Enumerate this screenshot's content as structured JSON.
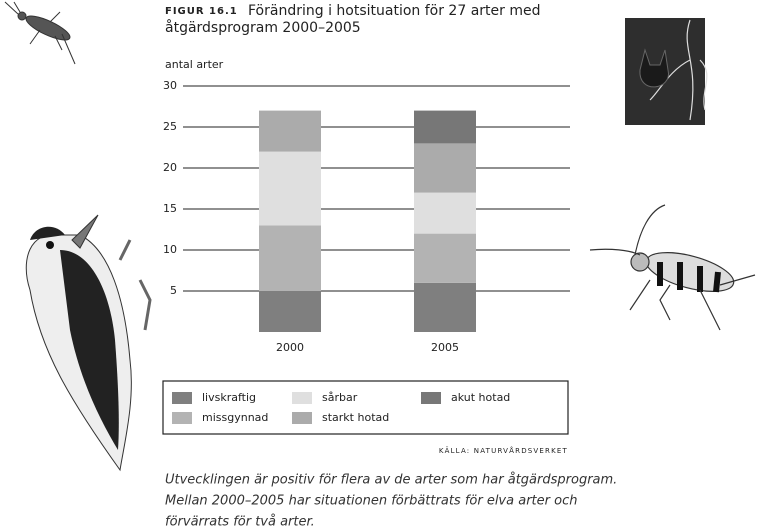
{
  "chart_data": {
    "type": "stacked_bar",
    "figure_label": "FIGUR 16.1",
    "title": [
      "Förändring i hotsituation för 27 arter med",
      "åtgärdsprogram 2000–2005"
    ],
    "y_label": "antal arter",
    "categories": [
      "2000",
      "2005"
    ],
    "series": [
      {
        "name": "livskraftig",
        "color": "#7f7f7f",
        "values": [
          5,
          6
        ]
      },
      {
        "name": "missgynnad",
        "color": "#b3b3b3",
        "values": [
          8,
          6
        ]
      },
      {
        "name": "sårbar",
        "color": "#dfdfdf",
        "values": [
          9,
          5
        ]
      },
      {
        "name": "starkt hotad",
        "color": "#ababab",
        "values": [
          5,
          6
        ]
      },
      {
        "name": "akut hotad",
        "color": "#777777",
        "values": [
          0,
          4
        ]
      }
    ],
    "ylim": [
      0,
      30
    ],
    "yticks": [
      5,
      10,
      15,
      20,
      25,
      30
    ],
    "grid": true,
    "source": "KÄLLA: NATURVÅRDSVERKET",
    "caption": [
      "Utvecklingen är positiv för flera av de arter som har åtgärdsprogram.",
      "Mellan 2000–2005 har situationen förbättrats för elva arter och",
      "förvärrats för två arter."
    ]
  }
}
